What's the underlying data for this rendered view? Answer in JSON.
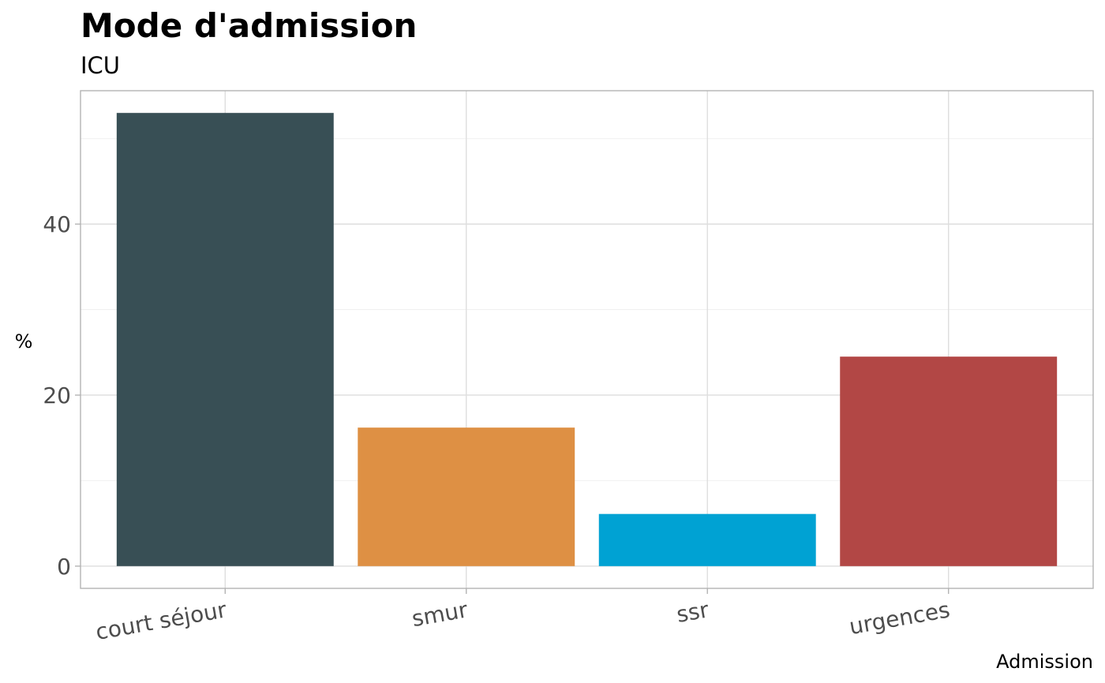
{
  "chart_data": {
    "type": "bar",
    "title": "Mode d'admission",
    "subtitle": "ICU",
    "xlabel": "Admission",
    "ylabel": "%",
    "categories": [
      "court séjour",
      "smur",
      "ssr",
      "urgences"
    ],
    "values": [
      53,
      16.2,
      6.1,
      24.5
    ],
    "colors": [
      "#384f55",
      "#de9044",
      "#00a2d3",
      "#b24745"
    ],
    "ylim": [
      -2.6,
      55.6
    ],
    "yticks": [
      0,
      20,
      40
    ],
    "yticks_minor": [
      10,
      30,
      50
    ],
    "grid": true,
    "legend": "none",
    "panel_border_color": "#b3b3b3"
  }
}
